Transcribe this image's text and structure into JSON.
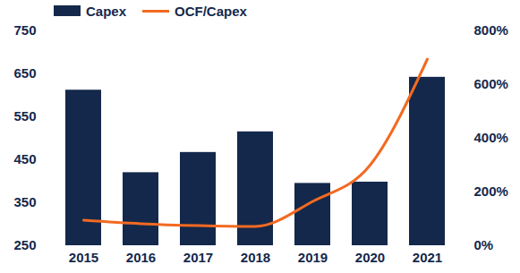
{
  "chart_data": {
    "type": "bar",
    "categories": [
      "2015",
      "2016",
      "2017",
      "2018",
      "2019",
      "2020",
      "2021"
    ],
    "series": [
      {
        "name": "Capex",
        "type": "bar",
        "color": "#14284b",
        "values": [
          612,
          420,
          467,
          515,
          395,
          398,
          642
        ]
      },
      {
        "name": "OCF/Capex",
        "type": "line",
        "color": "#f26a21",
        "axis": "y2",
        "values": [
          95,
          82,
          75,
          72,
          165,
          300,
          695
        ]
      }
    ],
    "ylim": [
      250,
      750
    ],
    "yticks": [
      250,
      350,
      450,
      550,
      650,
      750
    ],
    "y2lim": [
      0,
      800
    ],
    "y2ticks": [
      {
        "value": 0,
        "label": "0%"
      },
      {
        "value": 200,
        "label": "200%"
      },
      {
        "value": 400,
        "label": "400%"
      },
      {
        "value": 600,
        "label": "600%"
      },
      {
        "value": 800,
        "label": "800%"
      }
    ],
    "legend": "top-left",
    "grid": false
  }
}
